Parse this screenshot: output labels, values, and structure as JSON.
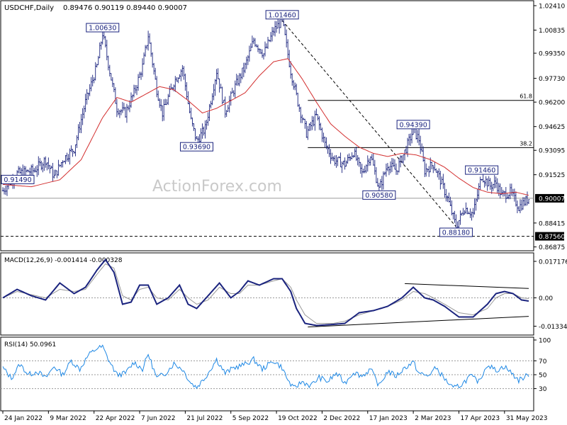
{
  "header": {
    "symbol": "USDCHF,Daily",
    "ohlc": "0.89476 0.90119 0.89440 0.90007"
  },
  "watermark": "ActionForex.com",
  "chart_data": [
    {
      "type": "line",
      "title": "USDCHF,Daily",
      "ylim": [
        0.8672,
        1.0241
      ],
      "y_ticks": [
        "1.02410",
        "1.00835",
        "0.99350",
        "0.97730",
        "0.96200",
        "0.94625",
        "0.93095",
        "0.91525",
        "0.90007",
        "0.88415",
        "0.87560",
        "0.86875"
      ],
      "y_tick_values": [
        1.0241,
        1.00835,
        0.9935,
        0.9773,
        0.962,
        0.94625,
        0.93095,
        0.91525,
        0.90007,
        0.88415,
        0.8756,
        0.86875
      ],
      "current_price": "0.90007",
      "x_ticks": [
        "24 Jan 2022",
        "9 Mar 2022",
        "22 Apr 2022",
        "7 Jun 2022",
        "21 Jul 2022",
        "5 Sep 2022",
        "19 Oct 2022",
        "2 Dec 2022",
        "17 Jan 2023",
        "2 Mar 2023",
        "17 Apr 2023",
        "31 May 2023"
      ],
      "x_tick_index": [
        0,
        32,
        64,
        96,
        128,
        160,
        192,
        224,
        256,
        288,
        320,
        352
      ],
      "bars": 370,
      "price_series": {
        "knots": [
          [
            0,
            0.905
          ],
          [
            10,
            0.916
          ],
          [
            22,
            0.918
          ],
          [
            30,
            0.925
          ],
          [
            36,
            0.914
          ],
          [
            42,
            0.925
          ],
          [
            50,
            0.932
          ],
          [
            58,
            0.962
          ],
          [
            66,
            0.985
          ],
          [
            70,
            1.0063
          ],
          [
            75,
            0.982
          ],
          [
            80,
            0.958
          ],
          [
            86,
            0.955
          ],
          [
            92,
            0.968
          ],
          [
            98,
            0.985
          ],
          [
            102,
            1.005
          ],
          [
            108,
            0.97
          ],
          [
            112,
            0.955
          ],
          [
            120,
            0.975
          ],
          [
            126,
            0.984
          ],
          [
            132,
            0.95
          ],
          [
            136,
            0.9369
          ],
          [
            142,
            0.945
          ],
          [
            150,
            0.982
          ],
          [
            156,
            0.956
          ],
          [
            163,
            0.972
          ],
          [
            170,
            0.985
          ],
          [
            176,
            1.002
          ],
          [
            183,
            0.993
          ],
          [
            190,
            1.008
          ],
          [
            196,
            1.0146
          ],
          [
            202,
            0.982
          ],
          [
            207,
            0.962
          ],
          [
            213,
            0.942
          ],
          [
            220,
            0.953
          ],
          [
            226,
            0.935
          ],
          [
            232,
            0.925
          ],
          [
            240,
            0.922
          ],
          [
            246,
            0.93
          ],
          [
            252,
            0.916
          ],
          [
            258,
            0.928
          ],
          [
            264,
            0.9058
          ],
          [
            270,
            0.922
          ],
          [
            276,
            0.918
          ],
          [
            282,
            0.93
          ],
          [
            288,
            0.9439
          ],
          [
            292,
            0.938
          ],
          [
            296,
            0.918
          ],
          [
            302,
            0.922
          ],
          [
            306,
            0.914
          ],
          [
            312,
            0.9
          ],
          [
            318,
            0.8818
          ],
          [
            324,
            0.894
          ],
          [
            330,
            0.89
          ],
          [
            336,
            0.9146
          ],
          [
            342,
            0.908
          ],
          [
            346,
            0.91
          ],
          [
            350,
            0.902
          ],
          [
            356,
            0.904
          ],
          [
            362,
            0.8945
          ],
          [
            369,
            0.90007
          ]
        ]
      },
      "ma_series": {
        "knots": [
          [
            0,
            0.909
          ],
          [
            20,
            0.9075
          ],
          [
            40,
            0.912
          ],
          [
            55,
            0.925
          ],
          [
            70,
            0.952
          ],
          [
            80,
            0.965
          ],
          [
            90,
            0.962
          ],
          [
            100,
            0.967
          ],
          [
            110,
            0.972
          ],
          [
            120,
            0.97
          ],
          [
            130,
            0.963
          ],
          [
            140,
            0.955
          ],
          [
            150,
            0.958
          ],
          [
            160,
            0.963
          ],
          [
            170,
            0.968
          ],
          [
            180,
            0.979
          ],
          [
            190,
            0.988
          ],
          [
            200,
            0.99
          ],
          [
            210,
            0.977
          ],
          [
            220,
            0.962
          ],
          [
            230,
            0.948
          ],
          [
            240,
            0.94
          ],
          [
            250,
            0.933
          ],
          [
            260,
            0.929
          ],
          [
            270,
            0.927
          ],
          [
            280,
            0.929
          ],
          [
            290,
            0.928
          ],
          [
            300,
            0.925
          ],
          [
            310,
            0.92
          ],
          [
            320,
            0.913
          ],
          [
            330,
            0.907
          ],
          [
            340,
            0.904
          ],
          [
            350,
            0.903
          ],
          [
            360,
            0.904
          ],
          [
            369,
            0.902
          ]
        ]
      },
      "price_labels": [
        {
          "text": "1.00630",
          "value": 1.0063,
          "bar": 70
        },
        {
          "text": "1.01460",
          "value": 1.0146,
          "bar": 196
        },
        {
          "text": "0.93690",
          "value": 0.9369,
          "bar": 136
        },
        {
          "text": "0.90580",
          "value": 0.9058,
          "bar": 264
        },
        {
          "text": "0.94390",
          "value": 0.9439,
          "bar": 288
        },
        {
          "text": "0.91460",
          "value": 0.9146,
          "bar": 336
        },
        {
          "text": "0.88180",
          "value": 0.8818,
          "bar": 318
        },
        {
          "text": "0.91490",
          "value": 0.9149,
          "bar": 0
        }
      ],
      "fib_levels": [
        {
          "label": "61.8",
          "value": 0.9631
        },
        {
          "label": "38.2",
          "value": 0.9327
        }
      ],
      "support_level": 0.8756,
      "trendline": {
        "from": [
          196,
          1.0146
        ],
        "to": [
          318,
          0.8818
        ]
      }
    },
    {
      "type": "line",
      "title": "MACD(12,26,9) -0.001414 -0.000328",
      "ylim": [
        -0.0165,
        0.0195
      ],
      "y_ticks": [
        "0.017176",
        "0.00",
        "-0.01334"
      ],
      "y_tick_values": [
        0.017176,
        0.0,
        -0.01334
      ],
      "macd_series": {
        "knots": [
          [
            0,
            0.0
          ],
          [
            10,
            0.004
          ],
          [
            20,
            0.001
          ],
          [
            30,
            -0.001
          ],
          [
            40,
            0.007
          ],
          [
            50,
            0.002
          ],
          [
            58,
            0.005
          ],
          [
            66,
            0.013
          ],
          [
            72,
            0.018
          ],
          [
            78,
            0.012
          ],
          [
            84,
            -0.003
          ],
          [
            90,
            -0.002
          ],
          [
            96,
            0.006
          ],
          [
            102,
            0.006
          ],
          [
            108,
            -0.003
          ],
          [
            116,
            0.0
          ],
          [
            124,
            0.006
          ],
          [
            130,
            -0.003
          ],
          [
            136,
            -0.005
          ],
          [
            144,
            0.001
          ],
          [
            152,
            0.007
          ],
          [
            160,
            0.0
          ],
          [
            166,
            0.003
          ],
          [
            172,
            0.008
          ],
          [
            180,
            0.006
          ],
          [
            190,
            0.009
          ],
          [
            196,
            0.009
          ],
          [
            202,
            0.003
          ],
          [
            206,
            -0.005
          ],
          [
            212,
            -0.012
          ],
          [
            220,
            -0.013
          ],
          [
            232,
            -0.0125
          ],
          [
            240,
            -0.012
          ],
          [
            250,
            -0.007
          ],
          [
            260,
            -0.006
          ],
          [
            270,
            -0.004
          ],
          [
            280,
            0.0
          ],
          [
            288,
            0.005
          ],
          [
            296,
            0.0
          ],
          [
            302,
            -0.001
          ],
          [
            310,
            -0.004
          ],
          [
            320,
            -0.009
          ],
          [
            330,
            -0.009
          ],
          [
            340,
            -0.003
          ],
          [
            346,
            0.002
          ],
          [
            352,
            0.003
          ],
          [
            358,
            0.002
          ],
          [
            364,
            -0.001
          ],
          [
            369,
            -0.0015
          ]
        ]
      },
      "signal_series": {
        "knots": [
          [
            0,
            0.0
          ],
          [
            10,
            0.003
          ],
          [
            20,
            0.0015
          ],
          [
            30,
            0.0
          ],
          [
            40,
            0.004
          ],
          [
            50,
            0.003
          ],
          [
            58,
            0.004
          ],
          [
            66,
            0.011
          ],
          [
            72,
            0.016
          ],
          [
            78,
            0.014
          ],
          [
            84,
            0.001
          ],
          [
            90,
            -0.001
          ],
          [
            96,
            0.004
          ],
          [
            102,
            0.005
          ],
          [
            108,
            0.0
          ],
          [
            116,
            -0.001
          ],
          [
            124,
            0.004
          ],
          [
            130,
            0.0
          ],
          [
            136,
            -0.003
          ],
          [
            144,
            -0.001
          ],
          [
            152,
            0.005
          ],
          [
            160,
            0.002
          ],
          [
            166,
            0.002
          ],
          [
            172,
            0.006
          ],
          [
            180,
            0.006
          ],
          [
            190,
            0.008
          ],
          [
            196,
            0.009
          ],
          [
            202,
            0.005
          ],
          [
            206,
            -0.001
          ],
          [
            212,
            -0.008
          ],
          [
            220,
            -0.012
          ],
          [
            232,
            -0.012
          ],
          [
            240,
            -0.011
          ],
          [
            250,
            -0.008
          ],
          [
            260,
            -0.006
          ],
          [
            270,
            -0.004
          ],
          [
            280,
            -0.001
          ],
          [
            288,
            0.003
          ],
          [
            296,
            0.002
          ],
          [
            302,
            0.0
          ],
          [
            310,
            -0.003
          ],
          [
            320,
            -0.007
          ],
          [
            330,
            -0.008
          ],
          [
            340,
            -0.005
          ],
          [
            346,
            0.0
          ],
          [
            352,
            0.002
          ],
          [
            358,
            0.002
          ],
          [
            364,
            0.0
          ],
          [
            369,
            -0.0003
          ]
        ]
      },
      "trendlines": [
        {
          "from": [
            282,
            0.0067
          ],
          "to": [
            369,
            0.0044
          ]
        },
        {
          "from": [
            214,
            -0.0137
          ],
          "to": [
            369,
            -0.0087
          ]
        }
      ]
    },
    {
      "type": "line",
      "title": "RSI(14) 50.0961",
      "ylim": [
        0,
        100
      ],
      "y_ticks": [
        "100",
        "70",
        "50",
        "30",
        "0"
      ],
      "y_tick_values": [
        100,
        70,
        50,
        30,
        0
      ],
      "rsi_series": {
        "knots": [
          [
            0,
            60
          ],
          [
            6,
            45
          ],
          [
            12,
            65
          ],
          [
            18,
            50
          ],
          [
            24,
            55
          ],
          [
            30,
            45
          ],
          [
            36,
            62
          ],
          [
            42,
            50
          ],
          [
            48,
            70
          ],
          [
            54,
            58
          ],
          [
            60,
            78
          ],
          [
            66,
            88
          ],
          [
            70,
            90
          ],
          [
            74,
            72
          ],
          [
            80,
            50
          ],
          [
            86,
            52
          ],
          [
            92,
            68
          ],
          [
            98,
            58
          ],
          [
            102,
            80
          ],
          [
            108,
            45
          ],
          [
            114,
            52
          ],
          [
            120,
            66
          ],
          [
            126,
            58
          ],
          [
            132,
            38
          ],
          [
            136,
            32
          ],
          [
            142,
            46
          ],
          [
            150,
            72
          ],
          [
            156,
            52
          ],
          [
            162,
            60
          ],
          [
            170,
            65
          ],
          [
            176,
            72
          ],
          [
            182,
            58
          ],
          [
            190,
            70
          ],
          [
            196,
            60
          ],
          [
            200,
            42
          ],
          [
            204,
            30
          ],
          [
            210,
            40
          ],
          [
            216,
            34
          ],
          [
            222,
            46
          ],
          [
            228,
            40
          ],
          [
            234,
            52
          ],
          [
            240,
            38
          ],
          [
            246,
            54
          ],
          [
            252,
            48
          ],
          [
            258,
            58
          ],
          [
            264,
            34
          ],
          [
            270,
            55
          ],
          [
            276,
            48
          ],
          [
            282,
            60
          ],
          [
            288,
            68
          ],
          [
            292,
            52
          ],
          [
            298,
            48
          ],
          [
            304,
            60
          ],
          [
            310,
            44
          ],
          [
            316,
            30
          ],
          [
            322,
            36
          ],
          [
            328,
            48
          ],
          [
            334,
            40
          ],
          [
            340,
            65
          ],
          [
            346,
            56
          ],
          [
            352,
            62
          ],
          [
            356,
            54
          ],
          [
            362,
            42
          ],
          [
            369,
            50
          ]
        ]
      }
    }
  ]
}
